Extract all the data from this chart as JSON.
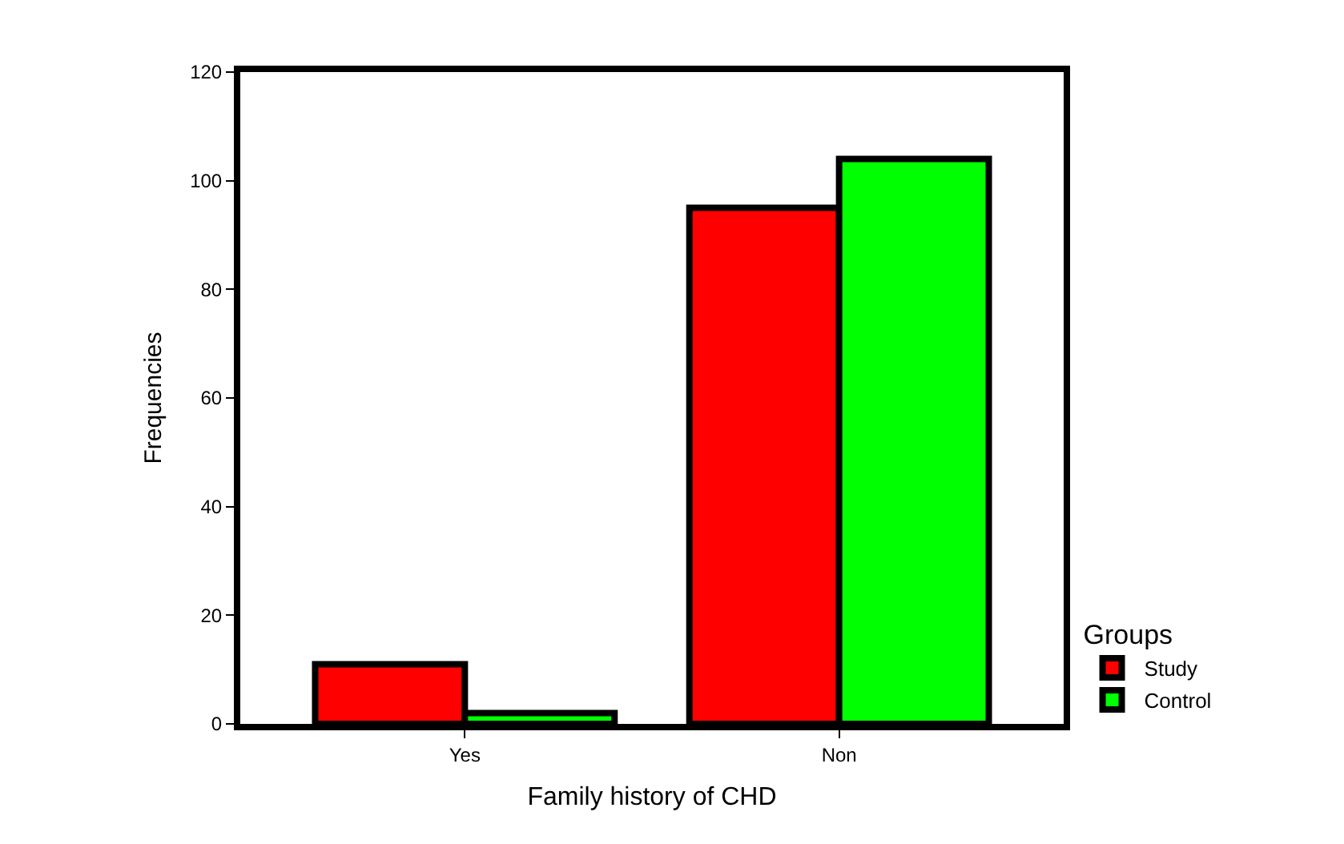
{
  "chart_data": {
    "type": "bar",
    "xlabel": "Family history of CHD",
    "ylabel": "Frequencies",
    "legend_title": "Groups",
    "categories": [
      "Yes",
      "Non"
    ],
    "series": [
      {
        "name": "Study",
        "color": "#ff0000",
        "values": [
          11,
          95
        ]
      },
      {
        "name": "Control",
        "color": "#00ff00",
        "values": [
          2,
          104
        ]
      }
    ],
    "ylim": [
      0,
      120
    ],
    "yticks": [
      0,
      20,
      40,
      60,
      80,
      100,
      120
    ],
    "legend": "bottom right"
  }
}
